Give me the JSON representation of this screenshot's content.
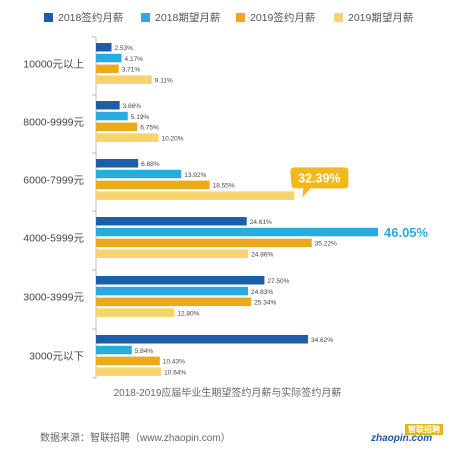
{
  "legend": [
    {
      "label": "2018签约月薪",
      "color": "#1c5ea8"
    },
    {
      "label": "2018期望月薪",
      "color": "#29abe2"
    },
    {
      "label": "2019签约月薪",
      "color": "#eba91b"
    },
    {
      "label": "2019期望月薪",
      "color": "#f6d36c"
    }
  ],
  "chart_data": {
    "type": "bar",
    "orientation": "horizontal",
    "title": "2018-2019应届毕业生期望签约月薪与实际签约月薪",
    "categories": [
      "10000元以上",
      "8000-9999元",
      "6000-7999元",
      "4000-5999元",
      "3000-3999元",
      "3000元以下"
    ],
    "series": [
      {
        "name": "2018签约月薪",
        "color": "#1c5ea8",
        "values": [
          2.53,
          3.86,
          6.88,
          24.61,
          27.5,
          34.62
        ],
        "labels": [
          "2.53%",
          "3.86%",
          "6.88%",
          "24.61%",
          "27.50%",
          "34.62%"
        ]
      },
      {
        "name": "2018期望月薪",
        "color": "#29abe2",
        "values": [
          4.17,
          5.19,
          13.92,
          46.05,
          24.83,
          5.84
        ],
        "labels": [
          "4.17%",
          "5.19%",
          "13.92%",
          "46.05%",
          "24.83%",
          "5.84%"
        ]
      },
      {
        "name": "2019签约月薪",
        "color": "#eba91b",
        "values": [
          3.71,
          6.75,
          18.55,
          35.22,
          25.34,
          10.43
        ],
        "labels": [
          "3.71%",
          "6.75%",
          "18.55%",
          "35.22%",
          "25.34%",
          "10.43%"
        ]
      },
      {
        "name": "2019期望月薪",
        "color": "#f6d36c",
        "values": [
          9.11,
          10.2,
          32.39,
          24.86,
          12.8,
          10.64
        ],
        "labels": [
          "9.11%",
          "10.20%",
          "32.39%",
          "24.86%",
          "12.80%",
          "10.64%"
        ]
      }
    ],
    "highlights": [
      {
        "series": 3,
        "category": 2,
        "label": "32.39%",
        "style": "callout",
        "color": "#f2b81c"
      },
      {
        "series": 1,
        "category": 3,
        "label": "46.05%",
        "style": "big-text",
        "color": "#29abe2"
      }
    ],
    "xlim": [
      0,
      46.05
    ],
    "grid": false
  },
  "caption": "2018-2019应届毕业生期望签约月薪与实际签约月薪",
  "source": "数据来源：智联招聘（www.zhaopin.com）",
  "brand": {
    "top": "智联招聘",
    "bottom": "zhaopin.com"
  }
}
